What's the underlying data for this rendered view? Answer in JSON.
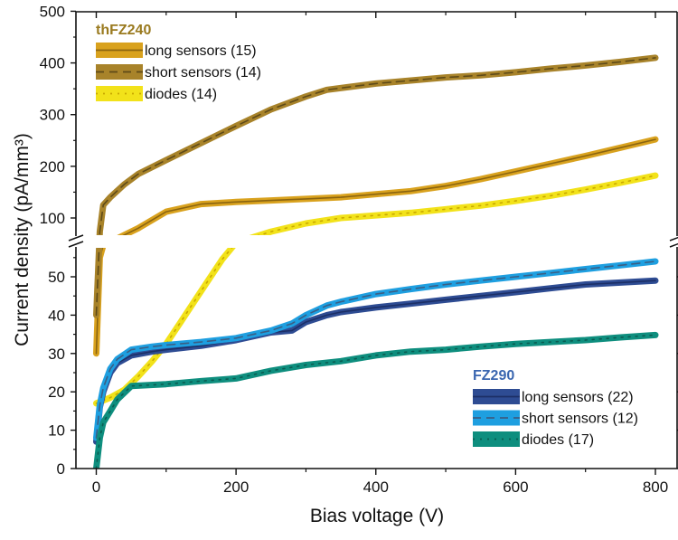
{
  "chart_data": {
    "type": "line",
    "xlabel": "Bias voltage (V)",
    "ylabel": "Current density (pA/mm³)",
    "xlim": [
      -30,
      800
    ],
    "xticks": [
      0,
      200,
      400,
      600,
      800
    ],
    "y_broken_axis": true,
    "ylim_lower": [
      0,
      59
    ],
    "yticks_lower": [
      0,
      10,
      20,
      30,
      40,
      50
    ],
    "ylim_upper": [
      59,
      500
    ],
    "yticks_upper": [
      100,
      200,
      300,
      400,
      500
    ],
    "legend_groups": [
      {
        "title": "thFZ240",
        "color": "#9A7A1F",
        "placement": "top-left",
        "entries": [
          {
            "series": "thFZ240_long",
            "label": "long sensors (15)"
          },
          {
            "series": "thFZ240_short",
            "label": "short sensors (14)"
          },
          {
            "series": "thFZ240_diodes",
            "label": "diodes (14)"
          }
        ]
      },
      {
        "title": "FZ290",
        "color": "#3A66B0",
        "placement": "bottom-right",
        "entries": [
          {
            "series": "FZ290_long",
            "label": "long sensors (22)"
          },
          {
            "series": "FZ290_short",
            "label": "short sensors (12)"
          },
          {
            "series": "FZ290_diodes",
            "label": "diodes (17)"
          }
        ]
      }
    ],
    "series": [
      {
        "id": "thFZ240_long",
        "band_color": "#D9A21E",
        "line_color": "#8A6410",
        "line_style": "solid",
        "x": [
          0,
          5,
          10,
          20,
          40,
          60,
          100,
          150,
          200,
          250,
          300,
          350,
          400,
          450,
          500,
          550,
          600,
          650,
          700,
          750,
          800
        ],
        "y": [
          30,
          55,
          60,
          65,
          75,
          85,
          112,
          127,
          131,
          134,
          137,
          140,
          146,
          152,
          162,
          175,
          190,
          205,
          220,
          236,
          252
        ]
      },
      {
        "id": "thFZ240_short",
        "band_color": "#A8832A",
        "line_color": "#5E4A18",
        "line_style": "dashed",
        "x": [
          0,
          5,
          10,
          20,
          40,
          60,
          100,
          150,
          200,
          250,
          300,
          330,
          400,
          450,
          500,
          550,
          600,
          650,
          700,
          750,
          800
        ],
        "y": [
          40,
          80,
          125,
          140,
          165,
          185,
          212,
          245,
          278,
          310,
          335,
          348,
          360,
          366,
          372,
          376,
          382,
          389,
          395,
          402,
          410
        ]
      },
      {
        "id": "thFZ240_diodes",
        "band_color": "#F2E21A",
        "line_color": "#C9A800",
        "line_style": "dotted",
        "x": [
          0,
          20,
          40,
          60,
          80,
          100,
          120,
          140,
          160,
          180,
          200,
          250,
          300,
          350,
          400,
          450,
          500,
          550,
          600,
          650,
          700,
          750,
          800
        ],
        "y": [
          17,
          18.5,
          20.5,
          24,
          28,
          32.5,
          38,
          43.5,
          49,
          54.5,
          64,
          80,
          92,
          100,
          105,
          110,
          117,
          124,
          133,
          143,
          155,
          168,
          182
        ]
      },
      {
        "id": "FZ290_long",
        "band_color": "#2E4C93",
        "line_color": "#1C2F66",
        "line_style": "solid",
        "x": [
          0,
          5,
          10,
          20,
          30,
          50,
          80,
          100,
          150,
          200,
          250,
          280,
          300,
          330,
          350,
          400,
          450,
          500,
          550,
          600,
          650,
          700,
          750,
          800
        ],
        "y": [
          7,
          16,
          20,
          25,
          27.5,
          29.5,
          30.5,
          31,
          32,
          33.5,
          35.5,
          36,
          38.2,
          40,
          40.8,
          42,
          43,
          44,
          45,
          46,
          47,
          48,
          48.5,
          49
        ]
      },
      {
        "id": "FZ290_short",
        "band_color": "#1E9FE0",
        "line_color": "#3A5E84",
        "line_style": "dashed",
        "x": [
          0,
          5,
          10,
          20,
          30,
          50,
          80,
          100,
          150,
          200,
          250,
          280,
          300,
          330,
          350,
          400,
          450,
          500,
          550,
          600,
          650,
          700,
          750,
          800
        ],
        "y": [
          8,
          16.5,
          21,
          26,
          28.5,
          31,
          31.8,
          32.2,
          33,
          34,
          36,
          37.8,
          40,
          42.5,
          43.5,
          45.5,
          46.8,
          48,
          49,
          50,
          51,
          52,
          53,
          54
        ]
      },
      {
        "id": "FZ290_diodes",
        "band_color": "#0E8E7E",
        "line_color": "#0A5C52",
        "line_style": "dotted",
        "x": [
          0,
          5,
          10,
          20,
          30,
          50,
          100,
          150,
          200,
          250,
          300,
          350,
          400,
          450,
          500,
          550,
          600,
          650,
          700,
          750,
          800
        ],
        "y": [
          0,
          8,
          12,
          15,
          18,
          21.5,
          22,
          22.8,
          23.5,
          25.5,
          27,
          28,
          29.5,
          30.5,
          31,
          31.8,
          32.5,
          33,
          33.5,
          34.2,
          34.8
        ]
      }
    ]
  }
}
